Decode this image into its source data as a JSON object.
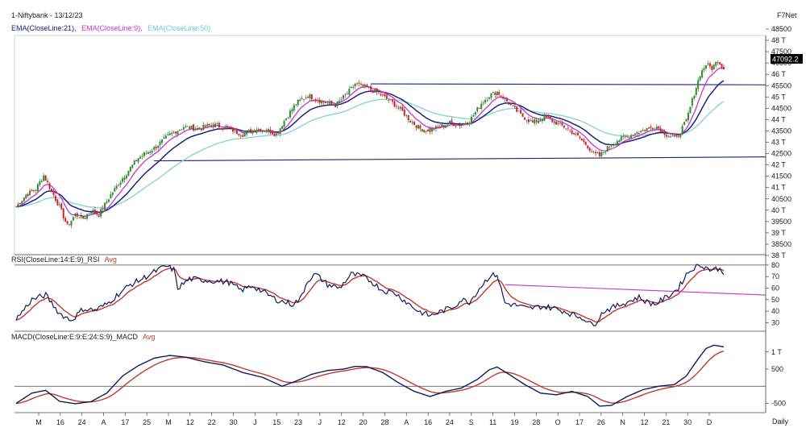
{
  "header": {
    "title": "1-Niftybank - 13/12/23",
    "source": "F7Net",
    "ema_labels": [
      {
        "text": "EMA(CloseLine:21),",
        "color": "#1a237e"
      },
      {
        "text": "EMA(CloseLine:9),",
        "color": "#cc33cc"
      },
      {
        "text": "EMA(CloseLine:50)",
        "color": "#66cccc"
      }
    ]
  },
  "chart_data": [
    {
      "type": "candlestick",
      "title": "1-Niftybank - 13/12/23",
      "ylim": [
        37700,
        48700
      ],
      "y_tick_labels": [
        "48500",
        "48 T",
        "47500",
        "46500",
        "46 T",
        "45500",
        "45 T",
        "44500",
        "44 T",
        "43500",
        "43 T",
        "42500",
        "42 T",
        "41500",
        "41 T",
        "40500",
        "40 T",
        "39500",
        "39 T",
        "38500",
        "38 T"
      ],
      "last_price_label": "47092.2",
      "series_names": [
        "EMA(CloseLine:21)",
        "EMA(CloseLine:9)",
        "EMA(CloseLine:50)"
      ],
      "colors": {
        "up": "#2e8b2e",
        "down": "#c62828",
        "ema21": "#1a237e",
        "ema9": "#cc33cc",
        "ema50": "#7fd3d3",
        "trendline": "#1a237e"
      },
      "close_keypoints": [
        [
          0,
          40000
        ],
        [
          5,
          40600
        ],
        [
          10,
          40900
        ],
        [
          14,
          41600
        ],
        [
          18,
          40800
        ],
        [
          22,
          40000
        ],
        [
          26,
          39000
        ],
        [
          30,
          39600
        ],
        [
          34,
          39400
        ],
        [
          38,
          39800
        ],
        [
          42,
          39600
        ],
        [
          48,
          40600
        ],
        [
          55,
          41600
        ],
        [
          62,
          42500
        ],
        [
          70,
          43000
        ],
        [
          78,
          43700
        ],
        [
          85,
          44100
        ],
        [
          92,
          44000
        ],
        [
          100,
          44200
        ],
        [
          108,
          44000
        ],
        [
          115,
          43700
        ],
        [
          122,
          44000
        ],
        [
          128,
          43900
        ],
        [
          132,
          43700
        ],
        [
          136,
          44400
        ],
        [
          142,
          45300
        ],
        [
          148,
          45700
        ],
        [
          155,
          45400
        ],
        [
          162,
          45200
        ],
        [
          168,
          45800
        ],
        [
          172,
          46300
        ],
        [
          178,
          46100
        ],
        [
          184,
          45800
        ],
        [
          190,
          45400
        ],
        [
          195,
          45000
        ],
        [
          200,
          44400
        ],
        [
          205,
          44000
        ],
        [
          210,
          43900
        ],
        [
          215,
          44100
        ],
        [
          220,
          44300
        ],
        [
          225,
          44200
        ],
        [
          230,
          44400
        ],
        [
          236,
          45300
        ],
        [
          240,
          45700
        ],
        [
          244,
          45900
        ],
        [
          250,
          45300
        ],
        [
          256,
          44700
        ],
        [
          262,
          44300
        ],
        [
          268,
          44600
        ],
        [
          274,
          44300
        ],
        [
          280,
          44000
        ],
        [
          286,
          43500
        ],
        [
          290,
          43100
        ],
        [
          293,
          42700
        ],
        [
          296,
          42600
        ],
        [
          300,
          43000
        ],
        [
          305,
          43400
        ],
        [
          310,
          43600
        ],
        [
          315,
          43800
        ],
        [
          320,
          44000
        ],
        [
          325,
          44100
        ],
        [
          330,
          43700
        ],
        [
          335,
          43500
        ],
        [
          340,
          44400
        ],
        [
          344,
          45800
        ],
        [
          347,
          46800
        ],
        [
          350,
          47300
        ],
        [
          353,
          47100
        ],
        [
          356,
          47500
        ],
        [
          359,
          47090
        ]
      ],
      "horizontal_lines": [
        {
          "from": [
            180,
            46300
          ],
          "to": [
            400,
            46250
          ]
        },
        {
          "from": [
            70,
            42350
          ],
          "to": [
            400,
            42550
          ]
        }
      ],
      "x_tick_labels": [
        "M",
        "16",
        "24",
        "A",
        "17",
        "25",
        "M",
        "12",
        "22",
        "30",
        "J",
        "15",
        "23",
        "J",
        "12",
        "20",
        "28",
        "A",
        "16",
        "24",
        "S",
        "11",
        "19",
        "28",
        "O",
        "17",
        "26",
        "N",
        "12",
        "21",
        "30",
        "D"
      ],
      "x_axis_title": "Daily"
    },
    {
      "type": "line",
      "title": "RSI(CloseLine:14:E:9)_RSI",
      "series_names": [
        "RSI(CloseLine:14:E:9)_RSI",
        "Avg"
      ],
      "ylim": [
        24,
        82
      ],
      "y_tick_labels": [
        "80",
        "70",
        "60",
        "50",
        "40",
        "30"
      ],
      "colors": {
        "rsi": "#101b5e",
        "avg": "#c0392b",
        "trendline": "#cc33cc"
      },
      "rsi_keypoints": [
        [
          0,
          33
        ],
        [
          8,
          50
        ],
        [
          15,
          54
        ],
        [
          22,
          38
        ],
        [
          28,
          32
        ],
        [
          34,
          42
        ],
        [
          40,
          41
        ],
        [
          46,
          46
        ],
        [
          52,
          55
        ],
        [
          58,
          63
        ],
        [
          64,
          68
        ],
        [
          70,
          74
        ],
        [
          76,
          79
        ],
        [
          80,
          76
        ],
        [
          82,
          60
        ],
        [
          88,
          68
        ],
        [
          95,
          67
        ],
        [
          102,
          66
        ],
        [
          108,
          65
        ],
        [
          114,
          58
        ],
        [
          120,
          62
        ],
        [
          126,
          56
        ],
        [
          132,
          50
        ],
        [
          136,
          48
        ],
        [
          140,
          46
        ],
        [
          144,
          50
        ],
        [
          148,
          67
        ],
        [
          152,
          72
        ],
        [
          158,
          63
        ],
        [
          164,
          60
        ],
        [
          170,
          72
        ],
        [
          176,
          70
        ],
        [
          180,
          66
        ],
        [
          186,
          58
        ],
        [
          192,
          56
        ],
        [
          198,
          48
        ],
        [
          204,
          40
        ],
        [
          210,
          36
        ],
        [
          216,
          40
        ],
        [
          222,
          44
        ],
        [
          226,
          50
        ],
        [
          230,
          48
        ],
        [
          236,
          62
        ],
        [
          240,
          70
        ],
        [
          244,
          72
        ],
        [
          248,
          47
        ],
        [
          254,
          45
        ],
        [
          260,
          42
        ],
        [
          266,
          44
        ],
        [
          272,
          43
        ],
        [
          278,
          40
        ],
        [
          284,
          36
        ],
        [
          288,
          34
        ],
        [
          291,
          29
        ],
        [
          294,
          30
        ],
        [
          298,
          40
        ],
        [
          304,
          44
        ],
        [
          310,
          48
        ],
        [
          316,
          52
        ],
        [
          320,
          48
        ],
        [
          324,
          46
        ],
        [
          330,
          52
        ],
        [
          336,
          60
        ],
        [
          340,
          72
        ],
        [
          344,
          78
        ],
        [
          348,
          80
        ],
        [
          352,
          76
        ],
        [
          356,
          77
        ],
        [
          359,
          74
        ]
      ],
      "trendline": {
        "from": [
          248,
          63
        ],
        "to": [
          400,
          54
        ]
      },
      "reference_line": 80
    },
    {
      "type": "line",
      "title": "MACD(CloseLine:E:9:E:24:S:9)_MACD",
      "series_names": [
        "MACD(CloseLine:E:9:E:24:S:9)_MACD",
        "Avg"
      ],
      "ylim": [
        -700,
        1300
      ],
      "y_tick_labels": [
        "1 T",
        "500",
        "-500"
      ],
      "colors": {
        "macd": "#101b5e",
        "avg": "#c0392b"
      },
      "macd_keypoints": [
        [
          0,
          -500
        ],
        [
          8,
          -200
        ],
        [
          15,
          -120
        ],
        [
          22,
          -440
        ],
        [
          30,
          -510
        ],
        [
          38,
          -450
        ],
        [
          46,
          -200
        ],
        [
          54,
          300
        ],
        [
          62,
          600
        ],
        [
          70,
          820
        ],
        [
          78,
          900
        ],
        [
          86,
          850
        ],
        [
          95,
          720
        ],
        [
          105,
          620
        ],
        [
          115,
          400
        ],
        [
          125,
          260
        ],
        [
          135,
          0
        ],
        [
          142,
          150
        ],
        [
          150,
          350
        ],
        [
          158,
          460
        ],
        [
          166,
          500
        ],
        [
          172,
          580
        ],
        [
          178,
          570
        ],
        [
          186,
          400
        ],
        [
          194,
          100
        ],
        [
          202,
          -150
        ],
        [
          210,
          -300
        ],
        [
          218,
          -150
        ],
        [
          226,
          -50
        ],
        [
          234,
          200
        ],
        [
          240,
          480
        ],
        [
          244,
          560
        ],
        [
          250,
          350
        ],
        [
          258,
          50
        ],
        [
          266,
          -200
        ],
        [
          274,
          -250
        ],
        [
          282,
          -150
        ],
        [
          290,
          -300
        ],
        [
          296,
          -580
        ],
        [
          302,
          -560
        ],
        [
          310,
          -300
        ],
        [
          318,
          -100
        ],
        [
          326,
          0
        ],
        [
          334,
          50
        ],
        [
          340,
          300
        ],
        [
          346,
          800
        ],
        [
          350,
          1100
        ],
        [
          354,
          1200
        ],
        [
          359,
          1150
        ]
      ],
      "zero_line": 0
    }
  ]
}
